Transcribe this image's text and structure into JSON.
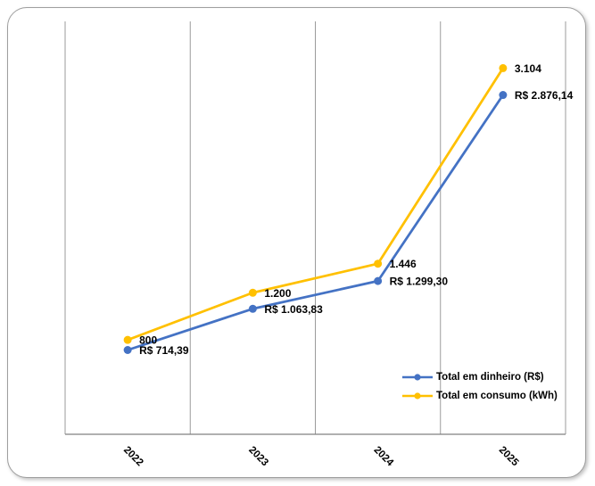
{
  "window": {
    "background": "#ffffff",
    "card_border_color": "#9e9e9e"
  },
  "chart_data": {
    "type": "line",
    "title": "",
    "xlabel": "",
    "ylabel": "",
    "categories": [
      "2022",
      "2023",
      "2024",
      "2025"
    ],
    "series": [
      {
        "name": "Total em dinheiro (R$)",
        "color": "#4472C4",
        "values": [
          714.39,
          1063.83,
          1299.3,
          2876.14
        ],
        "labels": [
          "R$ 714,39",
          "R$ 1.063,83",
          "R$ 1.299,30",
          "R$ 2.876,14"
        ]
      },
      {
        "name": "Total em consumo (kWh)",
        "color": "#FFC000",
        "values": [
          800,
          1200,
          1446,
          3104
        ],
        "labels": [
          "800",
          "1.200",
          "1.446",
          "3.104"
        ]
      }
    ],
    "ylim": [
      0,
      3500
    ],
    "grid": "vertical-only",
    "gridline_color": "#9b9b9b",
    "axis_color": "#808080",
    "label_color": "#000000",
    "legend_position": "inside-bottom-right",
    "x_tick_rotation": 45,
    "markers": "circle",
    "data_labels_visible": true
  }
}
